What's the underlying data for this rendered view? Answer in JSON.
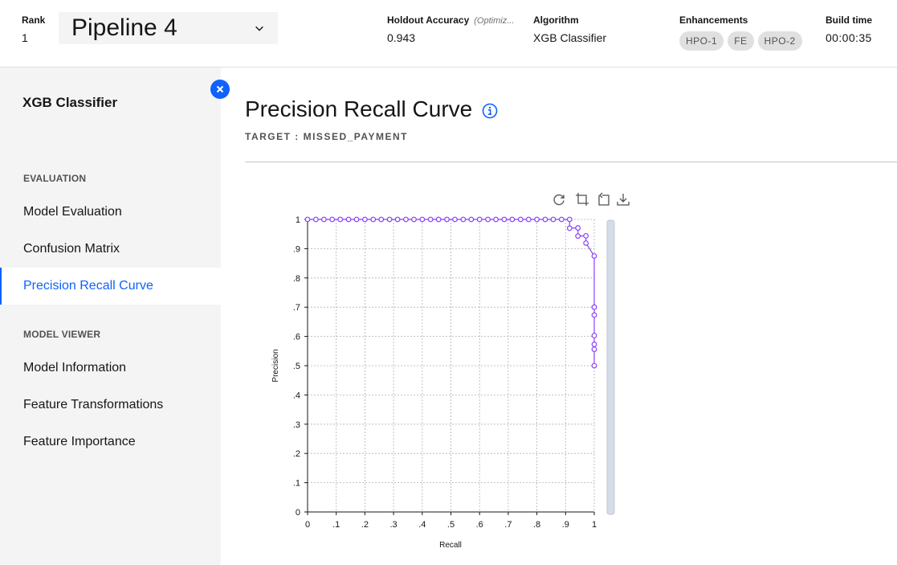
{
  "header": {
    "rank_label": "Rank",
    "rank_value": "1",
    "pipeline_value": "Pipeline 4",
    "accuracy_label": "Holdout Accuracy",
    "accuracy_optimized": "(Optimiz...",
    "accuracy_value": "0.943",
    "algorithm_label": "Algorithm",
    "algorithm_value": "XGB Classifier",
    "enhancements_label": "Enhancements",
    "enhancements": [
      "HPO-1",
      "FE",
      "HPO-2"
    ],
    "build_time_label": "Build time",
    "build_time_value": "00:00:35"
  },
  "sidebar": {
    "title": "XGB Classifier",
    "sections": [
      {
        "label": "EVALUATION",
        "items": [
          "Model Evaluation",
          "Confusion Matrix",
          "Precision Recall Curve"
        ]
      },
      {
        "label": "MODEL VIEWER",
        "items": [
          "Model Information",
          "Feature Transformations",
          "Feature Importance"
        ]
      }
    ],
    "active_item": "Precision Recall Curve"
  },
  "main": {
    "title": "Precision Recall Curve",
    "target": "TARGET : MISSED_PAYMENT"
  },
  "toolbar": {
    "icons": [
      "refresh-icon",
      "crop-icon",
      "reset-zoom-icon",
      "download-icon"
    ]
  },
  "colors": {
    "accent": "#0f62fe",
    "series": "#8a3ffc"
  },
  "chart_data": {
    "type": "line",
    "xlabel": "Recall",
    "ylabel": "Precision",
    "xlim": [
      0,
      1
    ],
    "ylim": [
      0,
      1
    ],
    "x_ticks": [
      "0",
      ".1",
      ".2",
      ".3",
      ".4",
      ".5",
      ".6",
      ".7",
      ".8",
      ".9",
      "1"
    ],
    "y_ticks": [
      "0",
      ".1",
      ".2",
      ".3",
      ".4",
      ".5",
      ".6",
      ".7",
      ".8",
      ".9",
      "1"
    ],
    "grid": true,
    "legend": "none",
    "series": [
      {
        "x": [
          0,
          0.029,
          0.057,
          0.086,
          0.114,
          0.143,
          0.171,
          0.2,
          0.229,
          0.257,
          0.286,
          0.314,
          0.343,
          0.371,
          0.4,
          0.429,
          0.457,
          0.486,
          0.514,
          0.543,
          0.571,
          0.6,
          0.629,
          0.657,
          0.686,
          0.714,
          0.743,
          0.771,
          0.8,
          0.829,
          0.857,
          0.886,
          0.914,
          0.914,
          0.943,
          0.943,
          0.971,
          0.971,
          1.0,
          1.0,
          1.0,
          1.0,
          1.0,
          1.0,
          1.0
        ],
        "y": [
          1,
          1,
          1,
          1,
          1,
          1,
          1,
          1,
          1,
          1,
          1,
          1,
          1,
          1,
          1,
          1,
          1,
          1,
          1,
          1,
          1,
          1,
          1,
          1,
          1,
          1,
          1,
          1,
          1,
          1,
          1,
          1,
          1,
          0.97,
          0.971,
          0.943,
          0.944,
          0.919,
          0.875,
          0.7,
          0.673,
          0.603,
          0.573,
          0.556,
          0.5
        ]
      }
    ]
  }
}
